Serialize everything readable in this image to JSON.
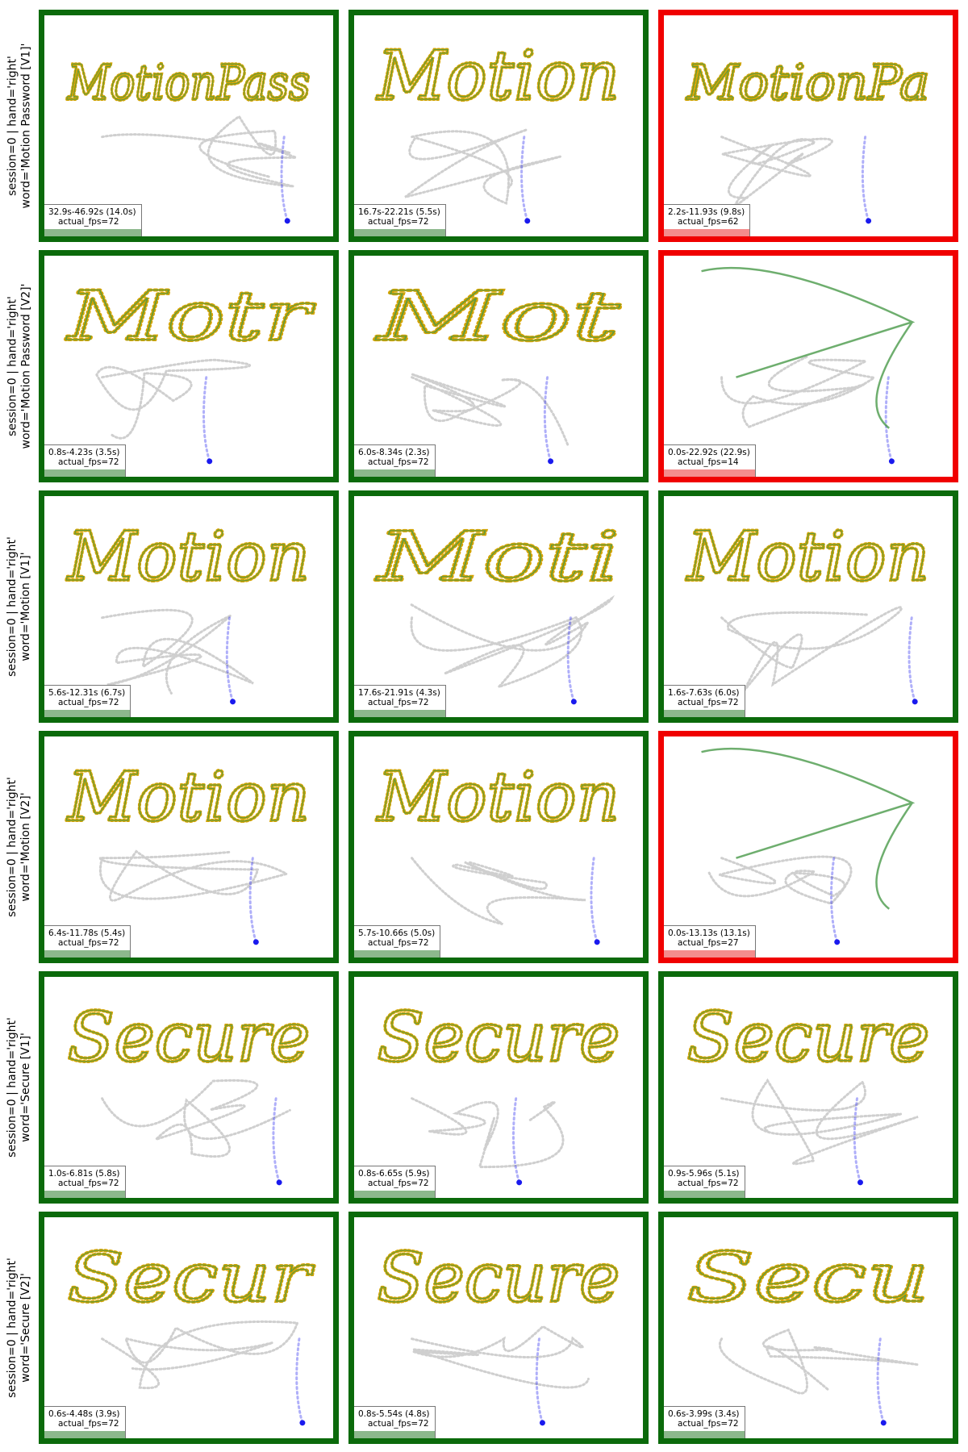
{
  "colors": {
    "pass_border": "#0b6a0b",
    "fail_border": "#f00000",
    "stroke_green": "#4a9a4a",
    "dot_gold": "#d4a300",
    "pen_blue": "#1a1aee",
    "hover_gray": "#8a8a8a"
  },
  "chart_data": {
    "type": "grid of handwriting trajectory plots",
    "rows": [
      {
        "label_line1": "session=0 | hand='right'",
        "label_line2": "word='Motion Password [V1]'",
        "panels": [
          {
            "caption": "32.9s-46.92s (14.0s)",
            "fps": "actual_fps=72",
            "status": "pass",
            "text": "MotionPass"
          },
          {
            "caption": "16.7s-22.21s (5.5s)",
            "fps": "actual_fps=72",
            "status": "pass",
            "text": "Motion"
          },
          {
            "caption": "2.2s-11.93s (9.8s)",
            "fps": "actual_fps=62",
            "status": "fail",
            "text": "MotionPa"
          }
        ]
      },
      {
        "label_line1": "session=0 | hand='right'",
        "label_line2": "word='Motion Password [V2]'",
        "panels": [
          {
            "caption": "0.8s-4.23s (3.5s)",
            "fps": "actual_fps=72",
            "status": "pass",
            "text": "Motr"
          },
          {
            "caption": "6.0s-8.34s (2.3s)",
            "fps": "actual_fps=72",
            "status": "pass",
            "text": "Mot"
          },
          {
            "caption": "0.0s-22.92s (22.9s)",
            "fps": "actual_fps=14",
            "status": "fail",
            "text": ""
          }
        ]
      },
      {
        "label_line1": "session=0 | hand='right'",
        "label_line2": "word='Motion [V1]'",
        "panels": [
          {
            "caption": "5.6s-12.31s (6.7s)",
            "fps": "actual_fps=72",
            "status": "pass",
            "text": "Motion"
          },
          {
            "caption": "17.6s-21.91s (4.3s)",
            "fps": "actual_fps=72",
            "status": "pass",
            "text": "Moti"
          },
          {
            "caption": "1.6s-7.63s (6.0s)",
            "fps": "actual_fps=72",
            "status": "pass",
            "text": "Motion"
          }
        ]
      },
      {
        "label_line1": "session=0 | hand='right'",
        "label_line2": "word='Motion [V2]'",
        "panels": [
          {
            "caption": "6.4s-11.78s (5.4s)",
            "fps": "actual_fps=72",
            "status": "pass",
            "text": "Motion"
          },
          {
            "caption": "5.7s-10.66s (5.0s)",
            "fps": "actual_fps=72",
            "status": "pass",
            "text": "Motion"
          },
          {
            "caption": "0.0s-13.13s (13.1s)",
            "fps": "actual_fps=27",
            "status": "fail",
            "text": ""
          }
        ]
      },
      {
        "label_line1": "session=0 | hand='right'",
        "label_line2": "word='Secure [V1]'",
        "panels": [
          {
            "caption": "1.0s-6.81s (5.8s)",
            "fps": "actual_fps=72",
            "status": "pass",
            "text": "Secure"
          },
          {
            "caption": "0.8s-6.65s (5.9s)",
            "fps": "actual_fps=72",
            "status": "pass",
            "text": "Secure"
          },
          {
            "caption": "0.9s-5.96s (5.1s)",
            "fps": "actual_fps=72",
            "status": "pass",
            "text": "Secure"
          }
        ]
      },
      {
        "label_line1": "session=0 | hand='right'",
        "label_line2": "word='Secure [V2]'",
        "panels": [
          {
            "caption": "0.6s-4.48s (3.9s)",
            "fps": "actual_fps=72",
            "status": "pass",
            "text": "Secur"
          },
          {
            "caption": "0.8s-5.54s (4.8s)",
            "fps": "actual_fps=72",
            "status": "pass",
            "text": "Secure"
          },
          {
            "caption": "0.6s-3.99s (3.4s)",
            "fps": "actual_fps=72",
            "status": "pass",
            "text": "Secu"
          }
        ]
      }
    ]
  }
}
